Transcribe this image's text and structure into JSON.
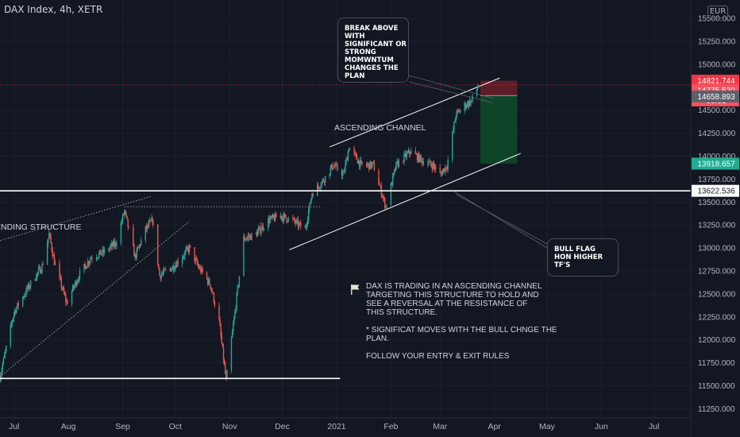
{
  "header": {
    "title": "DAX Index, 4h, XETR",
    "currency": "EUR"
  },
  "chart_data": {
    "type": "candlestick",
    "title": "DAX Index, 4h, XETR",
    "ylim": [
      11150,
      15700
    ],
    "xlim": [
      "2020-06-23",
      "2021-07-22"
    ],
    "y_ticks": [
      11250,
      11500,
      11750,
      12000,
      12250,
      12500,
      12750,
      13000,
      13250,
      13500,
      13750,
      14000,
      14250,
      14500,
      14750,
      15000,
      15250,
      15500
    ],
    "y_tick_labels": [
      "11250.000",
      "11500.000",
      "11750.000",
      "12000.000",
      "12250.000",
      "12500.000",
      "12750.000",
      "13000.000",
      "13250.000",
      "13500.000",
      "13750.000",
      "14000.000",
      "14250.000",
      "14500.000",
      "14750.000",
      "15000.000",
      "15250.000",
      "15500.000"
    ],
    "x_ticks": [
      {
        "label": "Jul",
        "date": "2020-07-01"
      },
      {
        "label": "Aug",
        "date": "2020-08-01"
      },
      {
        "label": "Sep",
        "date": "2020-09-01"
      },
      {
        "label": "Oct",
        "date": "2020-10-01"
      },
      {
        "label": "Nov",
        "date": "2020-11-01"
      },
      {
        "label": "Dec",
        "date": "2020-12-01"
      },
      {
        "label": "2021",
        "date": "2021-01-01"
      },
      {
        "label": "Feb",
        "date": "2021-02-01"
      },
      {
        "label": "Mar",
        "date": "2021-03-01"
      },
      {
        "label": "Apr",
        "date": "2021-04-01"
      },
      {
        "label": "May",
        "date": "2021-05-01"
      },
      {
        "label": "Jun",
        "date": "2021-06-01"
      },
      {
        "label": "Jul",
        "date": "2021-07-01"
      }
    ],
    "price_path": [
      [
        "2020-06-23",
        11600
      ],
      [
        "2020-07-01",
        12300
      ],
      [
        "2020-07-10",
        12600
      ],
      [
        "2020-07-17",
        12800
      ],
      [
        "2020-07-21",
        13150
      ],
      [
        "2020-07-24",
        12850
      ],
      [
        "2020-07-31",
        12400
      ],
      [
        "2020-08-07",
        12700
      ],
      [
        "2020-08-14",
        12900
      ],
      [
        "2020-08-21",
        12950
      ],
      [
        "2020-08-28",
        13050
      ],
      [
        "2020-09-02",
        13400
      ],
      [
        "2020-09-08",
        12900
      ],
      [
        "2020-09-14",
        13200
      ],
      [
        "2020-09-18",
        13300
      ],
      [
        "2020-09-22",
        12700
      ],
      [
        "2020-09-30",
        12800
      ],
      [
        "2020-10-09",
        13000
      ],
      [
        "2020-10-14",
        12800
      ],
      [
        "2020-10-21",
        12600
      ],
      [
        "2020-10-26",
        12200
      ],
      [
        "2020-10-30",
        11550
      ],
      [
        "2020-11-04",
        12300
      ],
      [
        "2020-11-09",
        13100
      ],
      [
        "2020-11-16",
        13150
      ],
      [
        "2020-11-23",
        13300
      ],
      [
        "2020-11-30",
        13350
      ],
      [
        "2020-12-07",
        13300
      ],
      [
        "2020-12-14",
        13200
      ],
      [
        "2020-12-18",
        13600
      ],
      [
        "2020-12-23",
        13700
      ],
      [
        "2020-12-30",
        13900
      ],
      [
        "2021-01-05",
        13800
      ],
      [
        "2021-01-08",
        14100
      ],
      [
        "2021-01-15",
        13900
      ],
      [
        "2021-01-22",
        13900
      ],
      [
        "2021-01-29",
        13450
      ],
      [
        "2021-02-04",
        13900
      ],
      [
        "2021-02-12",
        14050
      ],
      [
        "2021-02-19",
        13950
      ],
      [
        "2021-02-25",
        13900
      ],
      [
        "2021-03-01",
        13800
      ],
      [
        "2021-03-05",
        13900
      ],
      [
        "2021-03-10",
        14450
      ],
      [
        "2021-03-15",
        14550
      ],
      [
        "2021-03-19",
        14600
      ],
      [
        "2021-03-23",
        14775
      ]
    ],
    "horizontal_lines": [
      {
        "value": 13622.536,
        "label": "13622.536"
      },
      {
        "value": 11580,
        "from": "2020-06-23",
        "to": "2021-01-03"
      }
    ],
    "price_labels": [
      {
        "label": "14821.744",
        "value": 14821.744,
        "role": "stop"
      },
      {
        "label": "14775.520",
        "value": 14775.52,
        "sub": "00:03",
        "role": "last"
      },
      {
        "label": "14658.893",
        "value": 14658.893,
        "role": "entry"
      },
      {
        "label": "13918.657",
        "value": 13918.657,
        "role": "target"
      }
    ],
    "position": {
      "side": "short",
      "from": "2021-03-24",
      "to": "2021-04-14",
      "entry": 14658.893,
      "stop": 14821.744,
      "target": 13918.657
    },
    "annotations": [
      {
        "id": "desc-structure",
        "text": "ENDING STRUCTURE"
      },
      {
        "id": "asc-channel",
        "text": "ASCENDING CHANNEL"
      },
      {
        "id": "callout-break",
        "lines": [
          "BREAK ABOVE",
          "WITH",
          "SIGNIFICANT OR",
          "STRONG",
          "MOMWNTUM",
          "CHANGES THE",
          "PLAN"
        ]
      },
      {
        "id": "callout-flag",
        "lines": [
          "BULL FLAG",
          "HON HIGHER",
          "TF'S"
        ]
      },
      {
        "id": "note",
        "lines": [
          "DAX IS TRADING IN AN ASCENDING CHANNEL",
          "TARGETING THIS STRUCTURE TO HOLD AND",
          "SEE A REVERSAL AT THE RESISTANCE OF",
          "THIS STRUCTURE.",
          "",
          "* SIGNIFICAT MOVES WITH THE BULL CHNGE THE",
          "PLAN.",
          "",
          "FOLLOW YOUR ENTRY & EXIT RULES"
        ]
      }
    ],
    "colors": {
      "background": "#131722",
      "up": "#26a69a",
      "down": "#ef5350",
      "stop": "#f23645",
      "target": "#089981",
      "line": "#ffffff"
    }
  }
}
